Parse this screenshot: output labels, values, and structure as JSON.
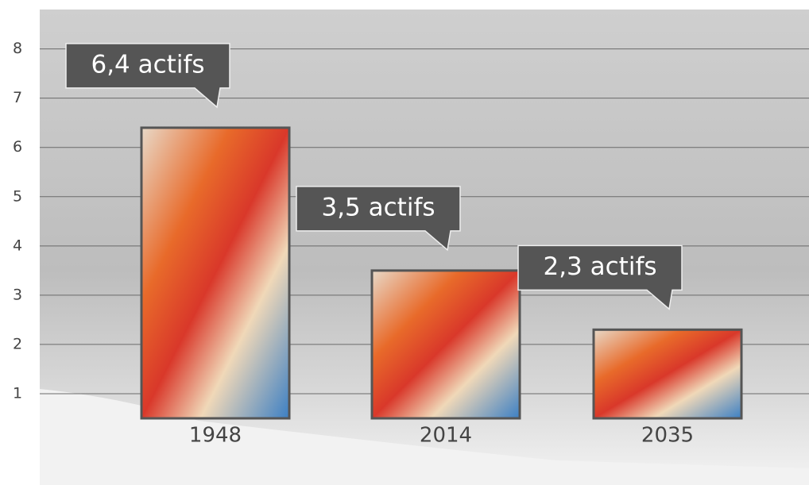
{
  "chart_data": {
    "type": "bar",
    "categories": [
      "1948",
      "2014",
      "2035"
    ],
    "values": [
      6.4,
      3.5,
      2.3
    ],
    "value_labels": [
      "6,4 actifs",
      "3,5 actifs",
      "2,3 actifs"
    ],
    "ylim": [
      0.5,
      8.8
    ],
    "yticks": [
      1,
      2,
      3,
      4,
      5,
      6,
      7,
      8
    ],
    "grid": true
  }
}
